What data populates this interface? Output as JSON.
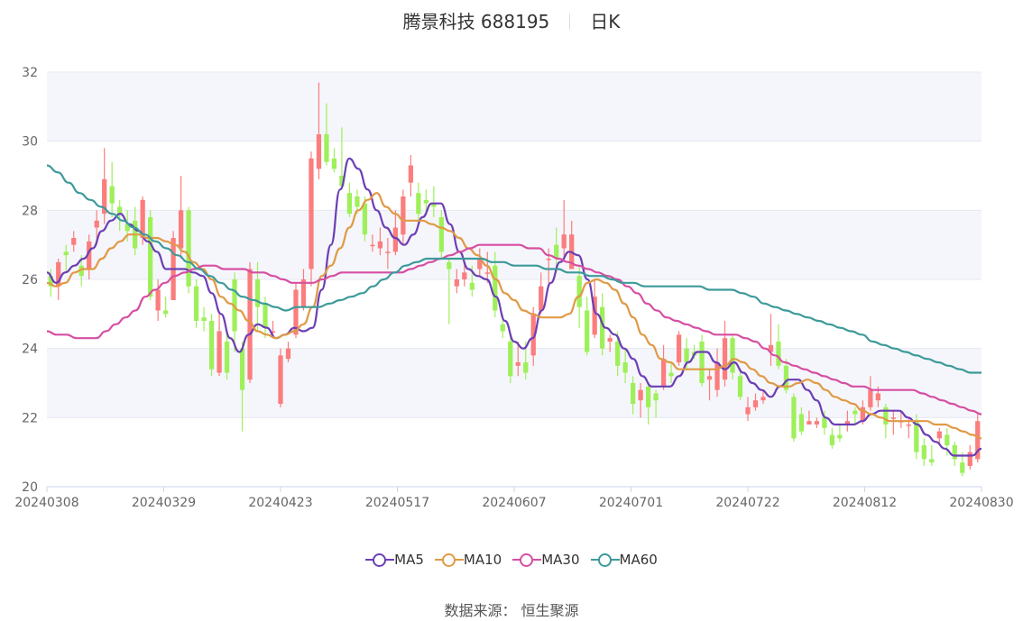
{
  "chart_data": {
    "type": "candlestick",
    "title": "腾景科技 688195",
    "subtitle": "日K",
    "ylim": [
      20,
      32
    ],
    "yticks": [
      20,
      22,
      24,
      26,
      28,
      30,
      32
    ],
    "xticks": [
      "20240308",
      "20240329",
      "20240423",
      "20240517",
      "20240607",
      "20240701",
      "20240722",
      "20240812",
      "20240830"
    ],
    "grid": true,
    "legend_position": "bottom",
    "colors": {
      "up": "#fb7d7d",
      "down": "#9ef05a",
      "band": "#f5f6fb",
      "axis": "#ccd6eb"
    },
    "candles": [
      [
        26.1,
        25.8,
        25.5,
        26.3
      ],
      [
        25.8,
        26.5,
        25.4,
        26.6
      ],
      [
        26.8,
        26.7,
        26.2,
        27.0
      ],
      [
        27.0,
        27.2,
        26.8,
        27.4
      ],
      [
        26.4,
        26.1,
        25.8,
        26.7
      ],
      [
        26.3,
        27.1,
        26.0,
        27.3
      ],
      [
        27.5,
        27.7,
        27.0,
        28.0
      ],
      [
        27.9,
        28.9,
        27.6,
        29.8
      ],
      [
        28.7,
        28.2,
        27.8,
        29.4
      ],
      [
        28.1,
        27.9,
        27.4,
        28.3
      ],
      [
        27.6,
        27.4,
        27.1,
        28.0
      ],
      [
        27.7,
        26.9,
        26.7,
        28.1
      ],
      [
        27.2,
        28.3,
        27.0,
        28.4
      ],
      [
        27.8,
        25.5,
        25.4,
        28.0
      ],
      [
        25.1,
        25.7,
        24.8,
        26.0
      ],
      [
        25.1,
        25.0,
        24.9,
        25.5
      ],
      [
        25.4,
        27.2,
        25.4,
        27.4
      ],
      [
        26.9,
        28.0,
        26.6,
        29.0
      ],
      [
        28.0,
        25.8,
        25.6,
        28.1
      ],
      [
        25.8,
        24.8,
        24.6,
        26.0
      ],
      [
        24.9,
        24.8,
        24.5,
        25.2
      ],
      [
        24.8,
        23.4,
        23.2,
        25.0
      ],
      [
        23.3,
        24.5,
        23.2,
        25.0
      ],
      [
        24.2,
        23.3,
        23.1,
        24.5
      ],
      [
        26.0,
        24.5,
        23.9,
        26.2
      ],
      [
        24.0,
        22.8,
        21.6,
        24.2
      ],
      [
        23.1,
        26.3,
        23.0,
        26.5
      ],
      [
        26.0,
        25.2,
        24.5,
        26.5
      ],
      [
        25.3,
        24.6,
        24.3,
        25.5
      ],
      [
        24.5,
        24.5,
        24.4,
        24.8
      ],
      [
        22.4,
        23.8,
        22.3,
        24.0
      ],
      [
        23.7,
        24.0,
        23.6,
        24.2
      ],
      [
        24.4,
        25.7,
        24.3,
        25.9
      ],
      [
        25.2,
        26.0,
        25.1,
        26.3
      ],
      [
        26.3,
        29.5,
        25.8,
        29.7
      ],
      [
        29.2,
        30.2,
        28.9,
        31.7
      ],
      [
        30.2,
        29.4,
        29.3,
        31.1
      ],
      [
        29.5,
        29.2,
        29.1,
        29.8
      ],
      [
        29.0,
        28.7,
        28.6,
        30.4
      ],
      [
        28.5,
        27.9,
        27.8,
        28.8
      ],
      [
        28.4,
        28.1,
        27.9,
        28.6
      ],
      [
        28.2,
        27.3,
        27.1,
        28.4
      ],
      [
        27.0,
        27.0,
        26.8,
        27.3
      ],
      [
        26.9,
        27.1,
        26.7,
        27.5
      ],
      [
        26.8,
        26.8,
        26.3,
        27.2
      ],
      [
        26.8,
        27.5,
        26.7,
        28.0
      ],
      [
        27.3,
        28.4,
        27.0,
        28.6
      ],
      [
        28.8,
        29.3,
        28.4,
        29.6
      ],
      [
        28.5,
        27.9,
        27.7,
        28.8
      ],
      [
        28.3,
        28.2,
        27.9,
        28.6
      ],
      [
        28.2,
        28.1,
        27.8,
        28.7
      ],
      [
        27.8,
        26.8,
        26.6,
        28.0
      ],
      [
        26.5,
        26.3,
        24.7,
        26.6
      ],
      [
        25.8,
        26.0,
        25.6,
        26.3
      ],
      [
        26.0,
        26.2,
        25.8,
        26.5
      ],
      [
        25.9,
        25.7,
        25.5,
        26.4
      ],
      [
        26.3,
        26.6,
        26.1,
        26.9
      ],
      [
        26.2,
        26.2,
        25.9,
        26.8
      ],
      [
        26.4,
        25.1,
        24.9,
        26.8
      ],
      [
        24.7,
        24.5,
        24.3,
        25.0
      ],
      [
        24.2,
        23.2,
        23.0,
        24.4
      ],
      [
        23.5,
        23.6,
        23.2,
        24.2
      ],
      [
        23.6,
        23.3,
        23.1,
        24.2
      ],
      [
        23.8,
        25.0,
        23.5,
        25.2
      ],
      [
        25.1,
        25.8,
        25.0,
        26.2
      ],
      [
        26.6,
        26.6,
        25.8,
        26.9
      ],
      [
        27.0,
        26.6,
        26.2,
        27.5
      ],
      [
        26.9,
        27.3,
        26.5,
        28.3
      ],
      [
        26.3,
        27.3,
        26.3,
        27.7
      ],
      [
        26.1,
        25.2,
        24.6,
        26.4
      ],
      [
        25.1,
        23.9,
        23.8,
        25.5
      ],
      [
        24.4,
        25.5,
        24.3,
        26.0
      ],
      [
        25.2,
        24.0,
        23.8,
        25.6
      ],
      [
        24.2,
        24.3,
        23.9,
        24.4
      ],
      [
        24.2,
        23.5,
        23.2,
        24.5
      ],
      [
        23.6,
        23.3,
        23.0,
        24.0
      ],
      [
        23.0,
        22.4,
        22.1,
        23.2
      ],
      [
        22.5,
        22.8,
        22.0,
        23.0
      ],
      [
        22.9,
        22.3,
        21.8,
        23.0
      ],
      [
        22.7,
        22.5,
        22.0,
        22.8
      ],
      [
        22.9,
        23.7,
        22.8,
        24.1
      ],
      [
        23.3,
        23.2,
        23.0,
        23.6
      ],
      [
        23.6,
        24.4,
        23.5,
        24.5
      ],
      [
        24.0,
        23.6,
        23.4,
        24.3
      ],
      [
        23.9,
        23.8,
        23.7,
        24.1
      ],
      [
        24.2,
        23.0,
        22.9,
        24.4
      ],
      [
        23.1,
        23.2,
        22.5,
        23.4
      ],
      [
        22.8,
        23.6,
        22.6,
        24.0
      ],
      [
        23.1,
        24.3,
        22.9,
        24.8
      ],
      [
        24.3,
        23.3,
        23.1,
        24.4
      ],
      [
        23.2,
        22.6,
        22.5,
        23.4
      ],
      [
        22.1,
        22.3,
        21.9,
        22.6
      ],
      [
        22.3,
        22.5,
        22.2,
        22.7
      ],
      [
        22.5,
        22.6,
        22.4,
        22.8
      ],
      [
        23.9,
        24.1,
        23.5,
        25.0
      ],
      [
        24.2,
        23.5,
        23.4,
        24.7
      ],
      [
        23.5,
        22.8,
        22.7,
        23.7
      ],
      [
        22.6,
        21.4,
        21.3,
        22.7
      ],
      [
        22.1,
        21.6,
        21.5,
        22.3
      ],
      [
        21.8,
        21.9,
        21.8,
        22.2
      ],
      [
        21.8,
        21.9,
        21.7,
        22.0
      ],
      [
        22.0,
        21.7,
        21.5,
        22.2
      ],
      [
        21.5,
        21.2,
        21.1,
        21.7
      ],
      [
        21.5,
        21.4,
        21.3,
        21.8
      ],
      [
        21.8,
        21.9,
        21.6,
        22.2
      ],
      [
        22.2,
        22.1,
        21.8,
        22.3
      ],
      [
        21.9,
        22.3,
        21.8,
        22.5
      ],
      [
        22.3,
        22.8,
        22.2,
        23.2
      ],
      [
        22.5,
        22.7,
        22.3,
        22.9
      ],
      [
        22.3,
        21.8,
        21.4,
        22.4
      ],
      [
        22.0,
        22.0,
        21.5,
        22.2
      ],
      [
        21.9,
        21.9,
        21.7,
        22.2
      ],
      [
        21.8,
        21.8,
        21.4,
        22.0
      ],
      [
        21.9,
        21.0,
        20.8,
        22.1
      ],
      [
        21.2,
        20.8,
        20.6,
        21.4
      ],
      [
        20.8,
        20.7,
        20.6,
        21.2
      ],
      [
        21.4,
        21.6,
        21.2,
        21.7
      ],
      [
        21.5,
        21.2,
        20.9,
        21.7
      ],
      [
        21.2,
        20.8,
        20.6,
        21.3
      ],
      [
        20.7,
        20.4,
        20.3,
        21.0
      ],
      [
        20.6,
        21.0,
        20.5,
        21.2
      ],
      [
        20.8,
        21.9,
        20.7,
        22.1
      ]
    ],
    "series": [
      {
        "name": "MA5",
        "color": "#6c3fb5",
        "values": [
          26.2,
          25.9,
          26.2,
          26.4,
          26.6,
          26.9,
          27.4,
          27.7,
          27.9,
          27.6,
          27.4,
          27.1,
          26.8,
          26.3,
          26.3,
          26.3,
          26.2,
          26.1,
          25.6,
          25.0,
          24.3,
          23.9,
          24.4,
          24.7,
          24.6,
          24.3,
          24.4,
          24.6,
          24.5,
          24.6,
          25.7,
          27.0,
          28.6,
          29.5,
          29.2,
          28.6,
          28.0,
          27.5,
          27.2,
          27.0,
          27.3,
          27.8,
          28.2,
          28.2,
          27.6,
          26.8,
          26.3,
          26.1,
          26.0,
          25.5,
          24.8,
          24.2,
          24.0,
          24.3,
          25.1,
          25.9,
          26.5,
          26.8,
          26.7,
          26.0,
          25.0,
          24.6,
          24.4,
          24.0,
          23.7,
          23.2,
          22.9,
          22.9,
          22.9,
          23.2,
          23.6,
          23.9,
          23.9,
          23.6,
          23.4,
          23.6,
          23.3,
          23.0,
          22.8,
          22.6,
          22.9,
          23.1,
          23.1,
          22.8,
          22.5,
          22.0,
          21.8,
          21.8,
          21.8,
          21.9,
          22.1,
          22.2,
          22.2,
          22.2,
          22.0,
          21.8,
          21.5,
          21.3,
          21.1,
          20.9,
          20.9,
          20.9,
          21.1
        ]
      },
      {
        "name": "MA10",
        "color": "#e09a46",
        "values": [
          25.9,
          25.8,
          25.9,
          26.2,
          26.3,
          26.3,
          26.6,
          26.9,
          27.1,
          27.3,
          27.3,
          27.2,
          27.2,
          27.1,
          27.0,
          26.8,
          26.5,
          26.3,
          26.0,
          25.5,
          25.3,
          25.1,
          24.8,
          24.5,
          24.4,
          24.3,
          24.4,
          24.5,
          24.7,
          25.2,
          26.1,
          26.4,
          26.9,
          27.5,
          28.0,
          28.3,
          28.5,
          28.1,
          27.9,
          27.7,
          27.7,
          27.7,
          27.6,
          27.5,
          27.4,
          27.2,
          26.9,
          26.7,
          26.4,
          26.0,
          25.6,
          25.4,
          25.1,
          25.0,
          24.9,
          24.9,
          24.9,
          25.0,
          25.5,
          25.9,
          26.0,
          25.9,
          25.7,
          25.3,
          24.9,
          24.4,
          24.1,
          23.7,
          23.6,
          23.4,
          23.4,
          23.4,
          23.4,
          23.4,
          23.5,
          23.7,
          23.6,
          23.4,
          23.2,
          23.0,
          22.9,
          22.9,
          23.0,
          23.1,
          23.0,
          22.8,
          22.6,
          22.5,
          22.4,
          22.2,
          22.1,
          22.0,
          21.9,
          21.9,
          21.9,
          21.9,
          21.9,
          21.8,
          21.8,
          21.7,
          21.6,
          21.5,
          21.4
        ]
      },
      {
        "name": "MA30",
        "color": "#d64fa3",
        "values": [
          24.5,
          24.4,
          24.4,
          24.3,
          24.3,
          24.3,
          24.5,
          24.7,
          24.9,
          25.1,
          25.5,
          25.7,
          25.9,
          26.1,
          26.2,
          26.3,
          26.4,
          26.4,
          26.3,
          26.3,
          26.3,
          26.2,
          26.2,
          26.1,
          26.0,
          25.9,
          25.9,
          25.9,
          26.0,
          26.1,
          26.2,
          26.2,
          26.2,
          26.2,
          26.2,
          26.2,
          26.2,
          26.3,
          26.4,
          26.5,
          26.6,
          26.7,
          26.8,
          26.9,
          27.0,
          27.0,
          27.0,
          27.0,
          27.0,
          26.9,
          26.9,
          26.7,
          26.6,
          26.5,
          26.4,
          26.3,
          26.2,
          26.1,
          26.0,
          25.8,
          25.6,
          25.3,
          25.1,
          24.9,
          24.8,
          24.7,
          24.6,
          24.5,
          24.4,
          24.4,
          24.4,
          24.3,
          24.2,
          24.0,
          23.8,
          23.6,
          23.5,
          23.4,
          23.3,
          23.2,
          23.1,
          23.0,
          22.9,
          22.9,
          22.8,
          22.8,
          22.8,
          22.8,
          22.8,
          22.7,
          22.6,
          22.5,
          22.4,
          22.3,
          22.2,
          22.1
        ]
      },
      {
        "name": "MA60",
        "color": "#3d9a9a",
        "values": [
          29.3,
          29.1,
          28.8,
          28.5,
          28.3,
          28.1,
          27.9,
          27.7,
          27.5,
          27.3,
          27.1,
          26.9,
          26.7,
          26.5,
          26.3,
          26.1,
          25.9,
          25.7,
          25.5,
          25.4,
          25.3,
          25.2,
          25.1,
          25.2,
          25.2,
          25.2,
          25.3,
          25.4,
          25.5,
          25.6,
          25.8,
          26.0,
          26.2,
          26.4,
          26.5,
          26.6,
          26.6,
          26.6,
          26.6,
          26.6,
          26.6,
          26.5,
          26.5,
          26.4,
          26.4,
          26.4,
          26.3,
          26.3,
          26.2,
          26.2,
          26.1,
          26.1,
          26.0,
          25.9,
          25.9,
          25.8,
          25.8,
          25.8,
          25.8,
          25.8,
          25.8,
          25.7,
          25.7,
          25.7,
          25.6,
          25.5,
          25.3,
          25.2,
          25.1,
          25.0,
          24.9,
          24.8,
          24.7,
          24.6,
          24.5,
          24.4,
          24.2,
          24.1,
          24.0,
          23.9,
          23.8,
          23.7,
          23.6,
          23.5,
          23.4,
          23.3,
          23.3
        ]
      }
    ]
  },
  "source": "数据来源：  恒生聚源"
}
